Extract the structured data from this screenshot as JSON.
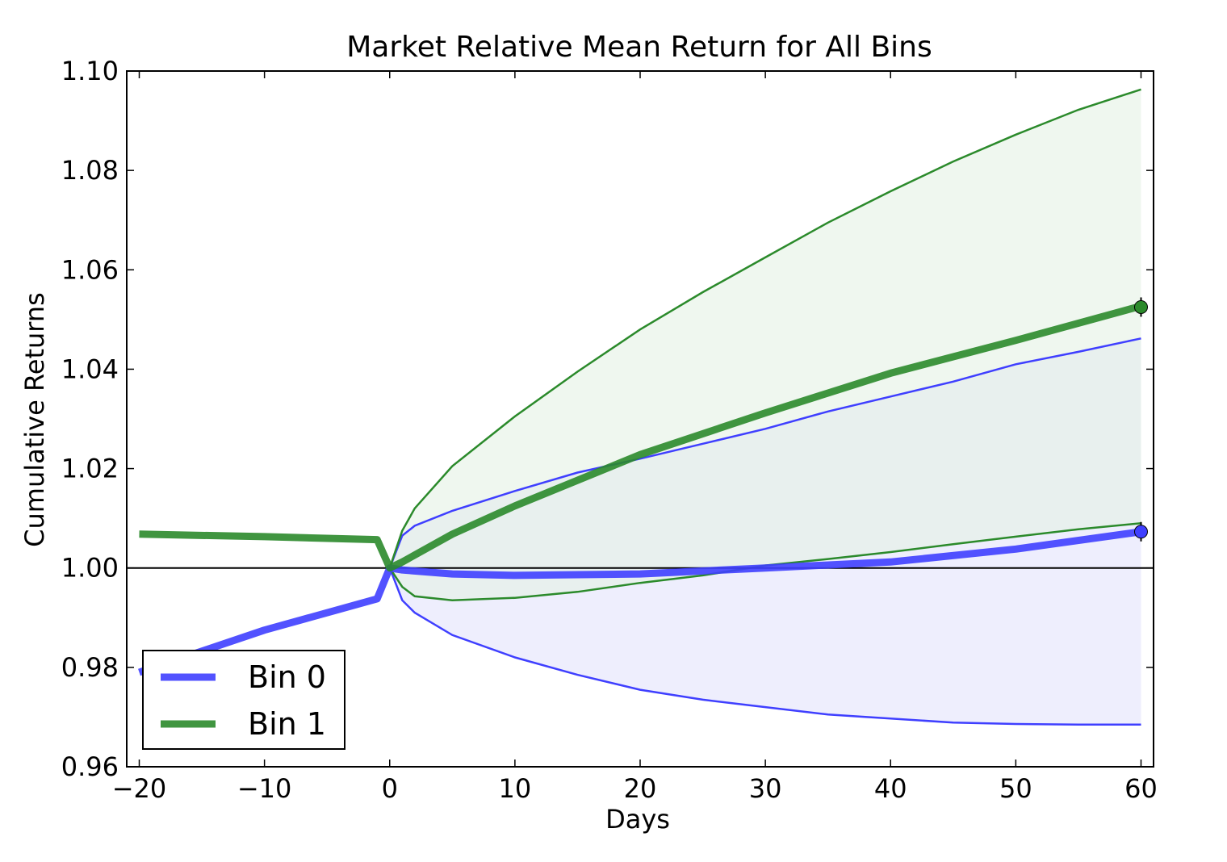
{
  "chart_data": {
    "type": "line",
    "title": "Market Relative Mean Return for All Bins",
    "xlabel": "Days",
    "ylabel": "Cumulative Returns",
    "xlim": [
      -21,
      61
    ],
    "ylim": [
      0.96,
      1.1
    ],
    "xticks": [
      -20,
      -10,
      0,
      10,
      20,
      30,
      40,
      50,
      60
    ],
    "xtick_labels": [
      "−20",
      "−10",
      "0",
      "10",
      "20",
      "30",
      "40",
      "50",
      "60"
    ],
    "yticks": [
      0.96,
      0.98,
      1.0,
      1.02,
      1.04,
      1.06,
      1.08,
      1.1
    ],
    "ytick_labels": [
      "0.96",
      "0.98",
      "1.00",
      "1.02",
      "1.04",
      "1.06",
      "1.08",
      "1.10"
    ],
    "reference_line_y": 1.0,
    "grid": false,
    "legend_position": "lower-left",
    "series": [
      {
        "name": "Bin 0",
        "color": "#3f3fff",
        "fill_color": "#e3e3fb",
        "mean": {
          "x": [
            -20,
            -10,
            -1,
            0,
            1,
            5,
            10,
            20,
            30,
            40,
            50,
            60
          ],
          "y": [
            0.979,
            0.9875,
            0.9938,
            1.0,
            0.9996,
            0.9988,
            0.9985,
            0.9988,
            1.0,
            1.0012,
            1.0038,
            1.0073
          ]
        },
        "upper": {
          "x": [
            0,
            1,
            2,
            5,
            10,
            15,
            20,
            25,
            30,
            35,
            40,
            45,
            50,
            55,
            60
          ],
          "y": [
            1.0,
            1.0065,
            1.0085,
            1.0115,
            1.0155,
            1.0192,
            1.022,
            1.025,
            1.028,
            1.0315,
            1.0345,
            1.0375,
            1.041,
            1.0435,
            1.0462
          ]
        },
        "lower": {
          "x": [
            0,
            1,
            2,
            5,
            10,
            15,
            20,
            25,
            30,
            35,
            40,
            45,
            50,
            55,
            60
          ],
          "y": [
            1.0,
            0.9935,
            0.991,
            0.9865,
            0.982,
            0.9785,
            0.9755,
            0.9735,
            0.972,
            0.9705,
            0.9697,
            0.9689,
            0.9686,
            0.9685,
            0.9685
          ]
        },
        "end_marker": [
          60,
          1.0073
        ]
      },
      {
        "name": "Bin 1",
        "color": "#2b8a2b",
        "fill_color": "#e4f1e4",
        "mean": {
          "x": [
            -20,
            -10,
            -1,
            0,
            1,
            5,
            10,
            20,
            30,
            40,
            50,
            60
          ],
          "y": [
            1.0068,
            1.0063,
            1.0057,
            1.0,
            1.0012,
            1.0068,
            1.0125,
            1.0228,
            1.0312,
            1.0392,
            1.0458,
            1.0527
          ]
        },
        "upper": {
          "x": [
            0,
            1,
            2,
            5,
            10,
            15,
            20,
            25,
            30,
            35,
            40,
            45,
            50,
            55,
            60
          ],
          "y": [
            1.0,
            1.0075,
            1.012,
            1.0205,
            1.0305,
            1.0395,
            1.048,
            1.0555,
            1.0625,
            1.0695,
            1.0758,
            1.0818,
            1.0872,
            1.0922,
            1.0963
          ]
        },
        "lower": {
          "x": [
            0,
            1,
            2,
            5,
            10,
            15,
            20,
            25,
            30,
            35,
            40,
            45,
            50,
            55,
            60
          ],
          "y": [
            1.0,
            0.9962,
            0.9943,
            0.9935,
            0.994,
            0.9952,
            0.997,
            0.9985,
            1.0005,
            1.0018,
            1.0032,
            1.0048,
            1.0063,
            1.0078,
            1.009
          ]
        },
        "end_marker": [
          60,
          1.0525
        ]
      }
    ]
  }
}
